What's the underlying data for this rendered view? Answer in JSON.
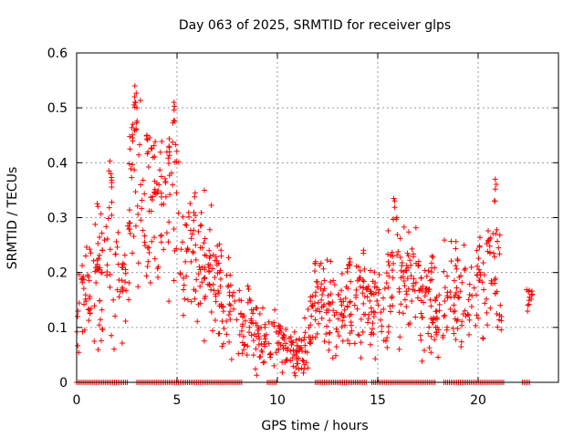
{
  "chart_data": {
    "type": "scatter",
    "title": "Day 063 of 2025, SRMTID for receiver glps",
    "xlabel": "GPS time / hours",
    "ylabel": "SRMTID / TECUs",
    "xlim": [
      0,
      24
    ],
    "ylim": [
      0,
      0.6
    ],
    "x_ticks": [
      0,
      5,
      10,
      15,
      20
    ],
    "x_tick_labels": [
      "0",
      "5",
      "10",
      "15",
      "20"
    ],
    "y_ticks": [
      0,
      0.1,
      0.2,
      0.3,
      0.4,
      0.5,
      0.6
    ],
    "y_tick_labels": [
      "0",
      "0.1",
      "0.2",
      "0.3",
      "0.4",
      "0.5",
      "0.6"
    ],
    "grid": true,
    "marker": "+",
    "series": [
      {
        "name": "SRMTID",
        "color": "#ff0000",
        "profile_hours": [
          0,
          0.3,
          0.5,
          0.8,
          1.0,
          1.3,
          1.6,
          1.9,
          2.2,
          2.5,
          2.9,
          3.2,
          3.6,
          4.0,
          4.4,
          4.8,
          5.2,
          5.6,
          6.0,
          6.5,
          7.0,
          7.5,
          8.0,
          8.5,
          9.0,
          9.5,
          10.0,
          10.5,
          11.0,
          11.3,
          11.7,
          12.0,
          12.5,
          13.0,
          13.5,
          14.0,
          14.5,
          15.0,
          15.5,
          16.0,
          16.5,
          17.0,
          17.5,
          18.0,
          18.5,
          19.0,
          19.5,
          20.0,
          20.5,
          20.9,
          21.2
        ],
        "profile_srmtid": [
          0.12,
          0.14,
          0.22,
          0.18,
          0.2,
          0.22,
          0.28,
          0.2,
          0.17,
          0.26,
          0.38,
          0.32,
          0.3,
          0.36,
          0.3,
          0.36,
          0.28,
          0.25,
          0.22,
          0.2,
          0.17,
          0.14,
          0.12,
          0.11,
          0.09,
          0.08,
          0.075,
          0.07,
          0.05,
          0.06,
          0.1,
          0.16,
          0.13,
          0.12,
          0.14,
          0.15,
          0.14,
          0.13,
          0.15,
          0.2,
          0.18,
          0.17,
          0.15,
          0.12,
          0.17,
          0.16,
          0.15,
          0.17,
          0.18,
          0.22,
          0.13
        ],
        "spikes": [
          [
            2.9,
            0.54
          ],
          [
            4.85,
            0.51
          ],
          [
            3.0,
            0.5
          ],
          [
            2.8,
            0.47
          ],
          [
            4.6,
            0.43
          ],
          [
            3.5,
            0.45
          ],
          [
            15.8,
            0.335
          ],
          [
            20.85,
            0.37
          ],
          [
            1.7,
            0.38
          ],
          [
            17.7,
            0.23
          ],
          [
            13.6,
            0.225
          ],
          [
            22.5,
            0.165
          ],
          [
            11.9,
            0.22
          ],
          [
            6.6,
            0.24
          ]
        ],
        "zero_segments": [
          [
            0,
            2.6
          ],
          [
            3.0,
            8.3
          ],
          [
            9.5,
            10.0
          ],
          [
            11.9,
            14.5
          ],
          [
            14.7,
            17.9
          ],
          [
            18.3,
            21.3
          ],
          [
            22.2,
            22.6
          ]
        ]
      }
    ]
  }
}
